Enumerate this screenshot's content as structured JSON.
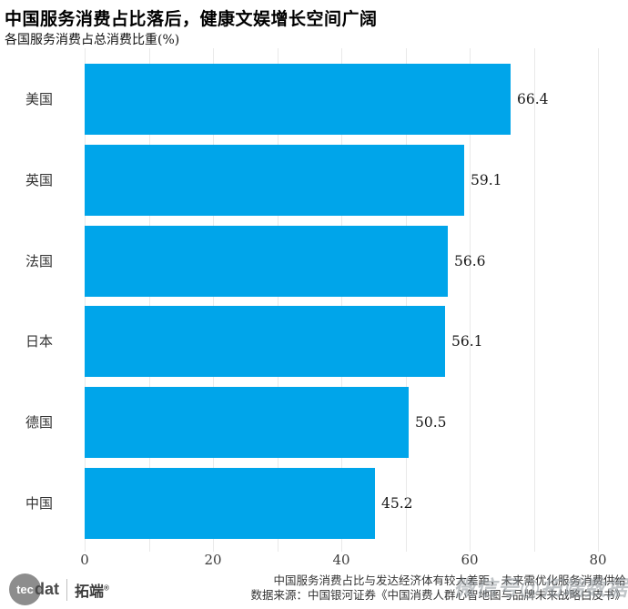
{
  "title": "中国服务消费占比落后，健康文娱增长空间广阔",
  "subtitle": "各国服务消费占总消费比重(%)",
  "chart_data": {
    "type": "bar",
    "orientation": "horizontal",
    "title": "中国服务消费占比落后，健康文娱增长空间广阔",
    "subtitle": "各国服务消费占总消费比重(%)",
    "categories": [
      "美国",
      "英国",
      "法国",
      "日本",
      "德国",
      "中国"
    ],
    "values": [
      66.4,
      59.1,
      56.6,
      56.1,
      50.5,
      45.2
    ],
    "value_labels": [
      "66.4",
      "59.1",
      "56.6",
      "56.1",
      "50.5",
      "45.2"
    ],
    "xlabel": "",
    "ylabel": "",
    "xlim": [
      0,
      80
    ],
    "xticks": [
      0,
      20,
      40,
      60,
      80
    ],
    "grid_step": 10,
    "grid": "on",
    "legend": "none",
    "bar_color": "#00a5ea",
    "grid_color": "#e9e9e9"
  },
  "footer": {
    "logo": {
      "circle_text": "tec",
      "suffix": "dat",
      "brand": "拓端",
      "reg_mark": "®"
    },
    "note_line1": "中国服务消费占比与发达经济体有较大差距，未来需优化服务消费供给",
    "note_line2": "数据来源：中国银河证券《中国消费人群心智地图与品牌未来战略白皮书》"
  },
  "watermark": "微信号@拓端数据"
}
